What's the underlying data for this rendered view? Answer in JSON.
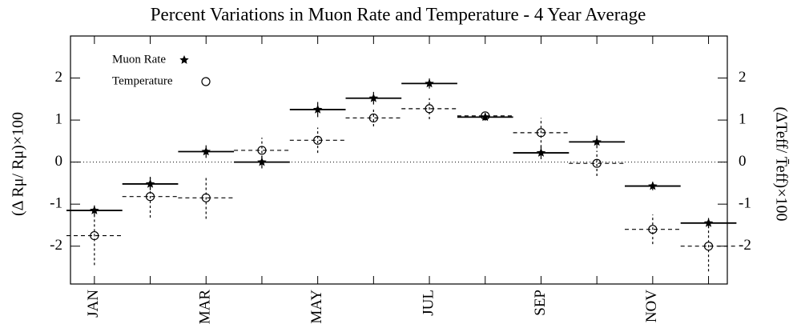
{
  "chart_data": {
    "type": "errorbar",
    "title": "Percent Variations in Muon Rate and Temperature - 4 Year Average",
    "y_label": "(Δ Rμ/ Rμ)×100",
    "y2_label": "(ΔTeff/ T̄eff)×100",
    "categories": [
      "JAN",
      null,
      "MAR",
      null,
      "MAY",
      null,
      "JUL",
      null,
      "SEP",
      null,
      "NOV",
      null
    ],
    "ylim": [
      -2.9,
      3
    ],
    "yticks": [
      -2,
      -1,
      0,
      1,
      2
    ],
    "y2lim": [
      -2.9,
      3
    ],
    "y2ticks": [
      -2,
      -1,
      0,
      1,
      2
    ],
    "zero_line": true,
    "legend": "upper left",
    "series": [
      {
        "name": "Muon Rate",
        "color": "#000000",
        "marker": "star",
        "line_style": "solid",
        "values": [
          -1.15,
          -0.52,
          0.25,
          0.0,
          1.25,
          1.52,
          1.87,
          1.07,
          0.22,
          0.48,
          -0.57,
          -1.45
        ],
        "errors": [
          0.12,
          0.15,
          0.15,
          0.15,
          0.18,
          0.15,
          0.12,
          0.08,
          0.15,
          0.15,
          0.1,
          0.12
        ]
      },
      {
        "name": "Temperature",
        "color": "#000000",
        "marker": "circle",
        "line_style": "dashed",
        "axis": "y2",
        "values": [
          -1.75,
          -0.82,
          -0.85,
          0.28,
          0.52,
          1.05,
          1.27,
          1.1,
          0.7,
          -0.03,
          -1.6,
          -2.0
        ],
        "errors": [
          0.7,
          0.5,
          0.5,
          0.3,
          0.3,
          0.2,
          0.25,
          0.1,
          0.35,
          0.3,
          0.35,
          0.6
        ]
      }
    ]
  }
}
